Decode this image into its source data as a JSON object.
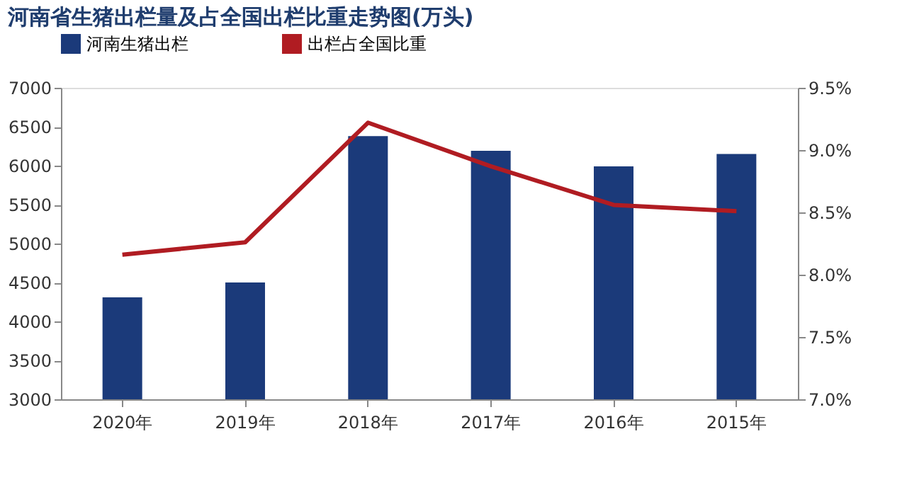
{
  "chart_data": {
    "type": "bar",
    "title": "河南省生猪出栏量及占全国出栏比重走势图(万头)",
    "categories": [
      "2020年",
      "2019年",
      "2018年",
      "2017年",
      "2016年",
      "2015年"
    ],
    "series": [
      {
        "name": "河南生猪出栏",
        "color": "#1b3a7a",
        "values": [
          4310,
          4500,
          6380,
          6190,
          5990,
          6150
        ]
      },
      {
        "name": "出栏占全国比重",
        "type": "line",
        "axis": "y2",
        "color": "#b01c22",
        "values": [
          8.16,
          8.26,
          9.22,
          8.87,
          8.56,
          8.51
        ]
      }
    ],
    "ylim": [
      3000,
      7000
    ],
    "yticks": [
      3000,
      3500,
      4000,
      4500,
      5000,
      5500,
      6000,
      6500,
      7000
    ],
    "y2lim": [
      7.0,
      9.5
    ],
    "y2ticks": [
      {
        "value": 7.0,
        "label": "7.0%"
      },
      {
        "value": 7.5,
        "label": "7.5%"
      },
      {
        "value": 8.0,
        "label": "8.0%"
      },
      {
        "value": 8.5,
        "label": "8.5%"
      },
      {
        "value": 9.0,
        "label": "9.0%"
      },
      {
        "value": 9.5,
        "label": "9.5%"
      }
    ],
    "legend": "top",
    "grid": false,
    "marker": "none"
  }
}
